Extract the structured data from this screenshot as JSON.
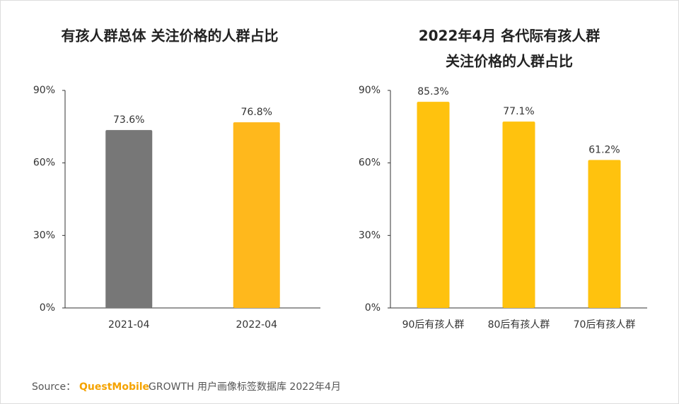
{
  "chart_data": [
    {
      "type": "bar",
      "title": [
        "有孩人群总体 关注价格的人群占比"
      ],
      "categories": [
        "2021-04",
        "2022-04"
      ],
      "values": [
        73.6,
        76.8
      ],
      "value_labels": [
        "73.6%",
        "76.8%"
      ],
      "colors": [
        "#777777",
        "#ffb81c"
      ],
      "ylim": [
        0,
        90
      ],
      "yticks": [
        {
          "value": 0,
          "label": "0%"
        },
        {
          "value": 30,
          "label": "30%"
        },
        {
          "value": 60,
          "label": "60%"
        },
        {
          "value": 90,
          "label": "90%"
        }
      ],
      "grid": false
    },
    {
      "type": "bar",
      "title": [
        "2022年4月 各代际有孩人群",
        "关注价格的人群占比"
      ],
      "categories": [
        "90后有孩人群",
        "80后有孩人群",
        "70后有孩人群"
      ],
      "values": [
        85.3,
        77.1,
        61.2
      ],
      "value_labels": [
        "85.3%",
        "77.1%",
        "61.2%"
      ],
      "colors": [
        "#ffc20e",
        "#ffc20e",
        "#ffc20e"
      ],
      "ylim": [
        0,
        90
      ],
      "yticks": [
        {
          "value": 0,
          "label": "0%"
        },
        {
          "value": 30,
          "label": "30%"
        },
        {
          "value": 60,
          "label": "60%"
        },
        {
          "value": 90,
          "label": "90%"
        }
      ],
      "grid": false
    }
  ],
  "footer": {
    "source_label": "Source：",
    "brand": "QuestMobile",
    "text": "GROWTH 用户画像标签数据库 2022年4月"
  }
}
